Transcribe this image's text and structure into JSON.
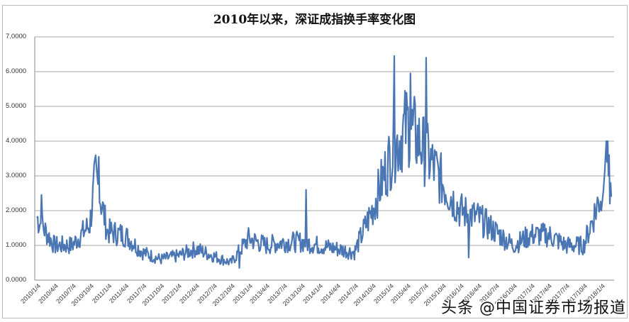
{
  "chart_data": {
    "type": "line",
    "title": "2010年以来，深证成指换手率变化图",
    "xlabel": "",
    "ylabel": "",
    "ylim": [
      0,
      7
    ],
    "yticks": [
      "0.0000",
      "1.0000",
      "2.0000",
      "3.0000",
      "4.0000",
      "5.0000",
      "6.0000",
      "7.0000"
    ],
    "grid": "horizontal",
    "legend": "none",
    "series_color": "#4a76b3",
    "x": [
      "2010/1/4",
      "2010/4/4",
      "2010/7/4",
      "2010/10/4",
      "2011/1/4",
      "2011/4/4",
      "2011/7/4",
      "2011/10/4",
      "2012/1/4",
      "2012/4/4",
      "2012/7/4",
      "2012/10/4",
      "2013/1/4",
      "2013/4/4",
      "2013/7/4",
      "2013/10/4",
      "2014/1/4",
      "2014/4/4",
      "2014/7/4",
      "2014/10/4",
      "2015/1/4",
      "2015/4/4",
      "2015/7/4",
      "2015/10/4",
      "2016/1/4",
      "2016/4/4",
      "2016/7/4",
      "2016/10/4",
      "2017/1/4",
      "2017/4/4",
      "2017/7/4",
      "2017/10/4",
      "2018/1/4"
    ],
    "series": [
      {
        "name": "深证成指换手率",
        "values_approx_by_period": [
          {
            "period": "2010/1",
            "value": 1.8,
            "peak": 2.45
          },
          {
            "period": "2010/4",
            "value": 1.0
          },
          {
            "period": "2010/7",
            "value": 1.0
          },
          {
            "period": "2010/10",
            "value": 1.6
          },
          {
            "period": "2010/11",
            "value": 3.0,
            "peak": 3.55
          },
          {
            "period": "2011/1",
            "value": 1.4
          },
          {
            "period": "2011/4",
            "value": 1.3
          },
          {
            "period": "2011/7",
            "value": 0.8
          },
          {
            "period": "2011/10",
            "value": 0.6
          },
          {
            "period": "2012/1",
            "value": 0.7
          },
          {
            "period": "2012/4",
            "value": 0.9
          },
          {
            "period": "2012/7",
            "value": 0.7
          },
          {
            "period": "2012/10",
            "value": 0.5,
            "low": 0.35
          },
          {
            "period": "2013/1",
            "value": 1.2
          },
          {
            "period": "2013/4",
            "value": 1.0
          },
          {
            "period": "2013/7",
            "value": 1.1
          },
          {
            "period": "2013/10",
            "value": 1.1,
            "peak": 2.6
          },
          {
            "period": "2014/1",
            "value": 1.0
          },
          {
            "period": "2014/4",
            "value": 0.9
          },
          {
            "period": "2014/7",
            "value": 0.8
          },
          {
            "period": "2014/10",
            "value": 2.0
          },
          {
            "period": "2015/1",
            "value": 3.5,
            "peak": 6.45
          },
          {
            "period": "2015/4",
            "value": 4.5,
            "peak": 5.95
          },
          {
            "period": "2015/6",
            "value": 4.0,
            "peak": 6.4
          },
          {
            "period": "2015/10",
            "value": 2.8
          },
          {
            "period": "2016/1",
            "value": 2.0,
            "low": 0.65
          },
          {
            "period": "2016/4",
            "value": 1.8
          },
          {
            "period": "2016/7",
            "value": 1.4
          },
          {
            "period": "2016/10",
            "value": 1.0
          },
          {
            "period": "2017/1",
            "value": 1.3
          },
          {
            "period": "2017/4",
            "value": 1.3
          },
          {
            "period": "2017/7",
            "value": 1.0
          },
          {
            "period": "2017/10",
            "value": 1.0
          },
          {
            "period": "2018/1",
            "value": 2.5,
            "peak": 4.0
          }
        ]
      }
    ]
  },
  "watermark": "头条 @中国证券市场报道"
}
